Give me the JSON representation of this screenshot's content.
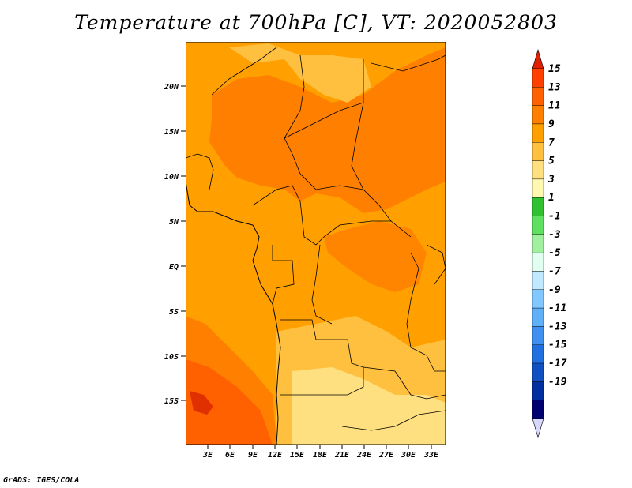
{
  "title": "Temperature at 700hPa [C], VT: 2020052803",
  "credit": "GrADS: IGES/COLA",
  "map": {
    "lon_labels": [
      "3E",
      "6E",
      "9E",
      "12E",
      "15E",
      "18E",
      "21E",
      "24E",
      "27E",
      "30E",
      "33E"
    ],
    "lat_labels": [
      "20N",
      "15N",
      "10N",
      "5N",
      "EQ",
      "5S",
      "10S",
      "15S"
    ]
  },
  "colorbar": {
    "levels": [
      "15",
      "13",
      "11",
      "9",
      "7",
      "5",
      "3",
      "1",
      "-1",
      "-3",
      "-5",
      "-7",
      "-9",
      "-11",
      "-13",
      "-15",
      "-17",
      "-19"
    ],
    "colors": [
      "#ff4000",
      "#ff6000",
      "#ff8000",
      "#ffa000",
      "#ffc040",
      "#ffe080",
      "#fff8b0",
      "#30c030",
      "#60e060",
      "#a0f0a0",
      "#e0fff0",
      "#c0e8ff",
      "#80c8ff",
      "#60b0f8",
      "#4090f0",
      "#2070e0",
      "#1050c0",
      "#0030a0",
      "#000070"
    ],
    "top_triangle_color": "#e02000",
    "bottom_triangle_color": "#d8d8ff"
  }
}
